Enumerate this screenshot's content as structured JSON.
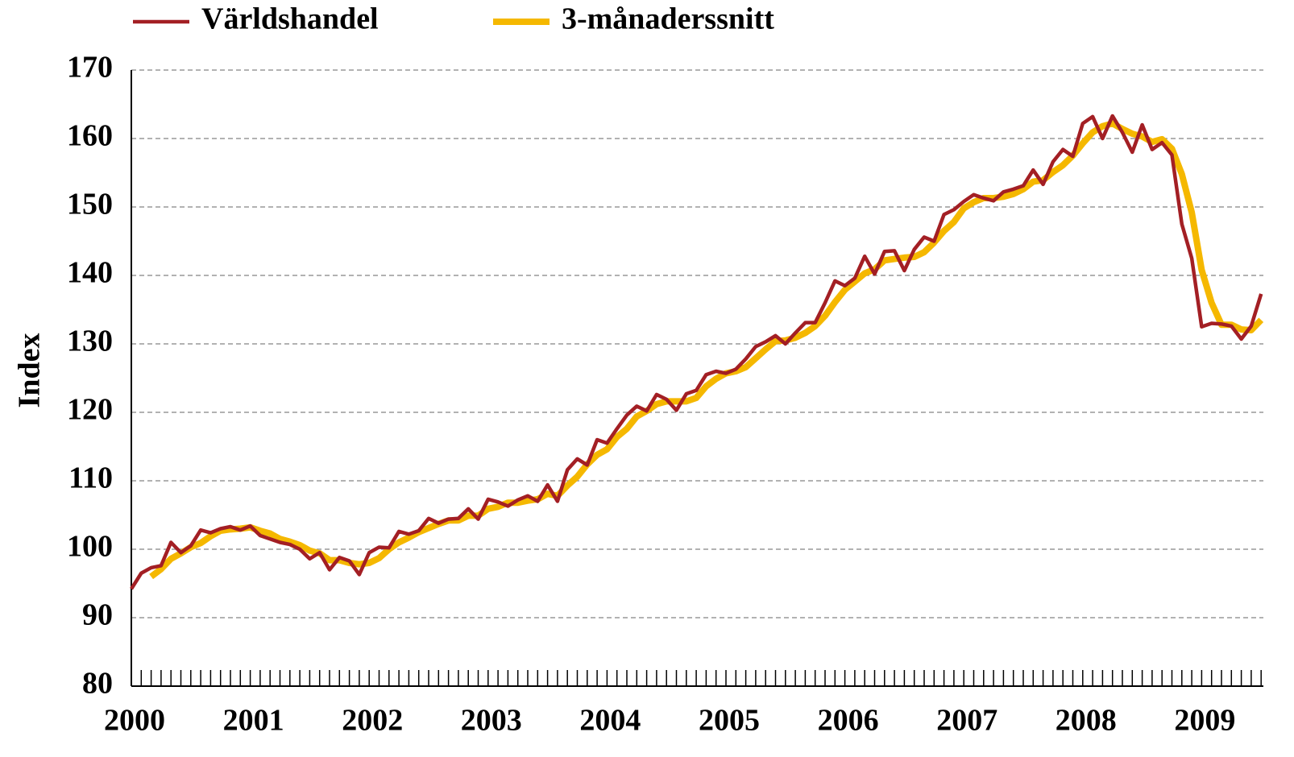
{
  "chart_data": {
    "type": "line",
    "y_label": "Index",
    "categories": [
      "2000",
      null,
      null,
      null,
      null,
      null,
      null,
      null,
      null,
      null,
      null,
      null,
      "2001",
      null,
      null,
      null,
      null,
      null,
      null,
      null,
      null,
      null,
      null,
      null,
      "2002",
      null,
      null,
      null,
      null,
      null,
      null,
      null,
      null,
      null,
      null,
      null,
      "2003",
      null,
      null,
      null,
      null,
      null,
      null,
      null,
      null,
      null,
      null,
      null,
      "2004",
      null,
      null,
      null,
      null,
      null,
      null,
      null,
      null,
      null,
      null,
      null,
      "2005",
      null,
      null,
      null,
      null,
      null,
      null,
      null,
      null,
      null,
      null,
      null,
      "2006",
      null,
      null,
      null,
      null,
      null,
      null,
      null,
      null,
      null,
      null,
      null,
      "2007",
      null,
      null,
      null,
      null,
      null,
      null,
      null,
      null,
      null,
      null,
      null,
      "2008",
      null,
      null,
      null,
      null,
      null,
      null,
      null,
      null,
      null,
      null,
      null,
      "2009",
      null,
      null,
      null,
      null,
      null,
      null
    ],
    "series": [
      {
        "name": "Världshandel",
        "color": "#a31f24",
        "values": [
          94.2,
          96.5,
          97.3,
          97.6,
          101,
          99.5,
          100.5,
          102.8,
          102.4,
          103,
          103.3,
          102.8,
          103.4,
          102,
          101.5,
          101,
          100.7,
          100,
          98.6,
          99.5,
          97,
          98.8,
          98.3,
          96.3,
          99.5,
          100.3,
          100.2,
          102.6,
          102.2,
          102.7,
          104.5,
          103.8,
          104.4,
          104.5,
          105.9,
          104.4,
          107.3,
          106.9,
          106.3,
          107.2,
          107.8,
          107,
          109.4,
          107,
          111.6,
          113.2,
          112.3,
          116,
          115.5,
          117.6,
          119.6,
          120.9,
          120.2,
          122.6,
          121.9,
          120.3,
          122.7,
          123.2,
          125.5,
          126,
          125.7,
          126.3,
          127.8,
          129.6,
          130.3,
          131.2,
          130,
          131.6,
          133.1,
          133.1,
          136,
          139.2,
          138.5,
          139.6,
          142.8,
          140.2,
          143.5,
          143.6,
          140.7,
          143.8,
          145.6,
          145,
          148.9,
          149.6,
          150.8,
          151.8,
          151.3,
          150.9,
          152.2,
          152.6,
          153.1,
          155.4,
          153.3,
          156.6,
          158.4,
          157.4,
          162.2,
          163.2,
          160,
          163.3,
          160.9,
          158,
          162,
          158.4,
          159.4,
          157.6,
          147.5,
          142.5,
          132.5,
          133,
          132.9,
          132.6,
          130.7,
          132.6,
          137.3
        ]
      },
      {
        "name": "3-månaderssnitt",
        "color": "#f5b800",
        "values": [
          null,
          null,
          96.0,
          97.1,
          98.6,
          99.4,
          100.3,
          100.9,
          101.9,
          102.7,
          102.9,
          103.0,
          103.2,
          102.7,
          102.3,
          101.5,
          101.1,
          100.6,
          99.8,
          99.4,
          98.4,
          98.4,
          98.0,
          97.8,
          98.0,
          98.7,
          100.0,
          101.0,
          101.7,
          102.5,
          103.1,
          103.7,
          104.2,
          104.2,
          104.9,
          104.9,
          105.9,
          106.2,
          106.8,
          106.8,
          107.1,
          107.3,
          108.1,
          107.8,
          109.3,
          110.6,
          112.4,
          113.8,
          114.6,
          116.4,
          117.6,
          119.4,
          120.2,
          121.2,
          121.6,
          121.6,
          121.6,
          122.1,
          123.8,
          124.9,
          125.7,
          126.0,
          126.6,
          127.9,
          129.2,
          130.4,
          130.5,
          130.9,
          131.6,
          132.6,
          134.1,
          136.1,
          137.9,
          139.1,
          140.3,
          140.9,
          142.2,
          142.4,
          142.6,
          142.7,
          143.4,
          144.8,
          146.5,
          147.8,
          149.8,
          150.7,
          151.3,
          151.3,
          151.5,
          151.9,
          152.6,
          153.7,
          153.9,
          155.1,
          156.1,
          157.5,
          159.3,
          160.9,
          161.8,
          162.2,
          161.4,
          160.7,
          160.3,
          159.5,
          159.9,
          158.5,
          154.8,
          149.2,
          140.8,
          136.0,
          132.8,
          132.8,
          132.1,
          132.0,
          133.5
        ]
      }
    ],
    "ylim": [
      80,
      170
    ],
    "yticks": [
      80,
      90,
      100,
      110,
      120,
      130,
      140,
      150,
      160,
      170
    ],
    "grid": true
  }
}
